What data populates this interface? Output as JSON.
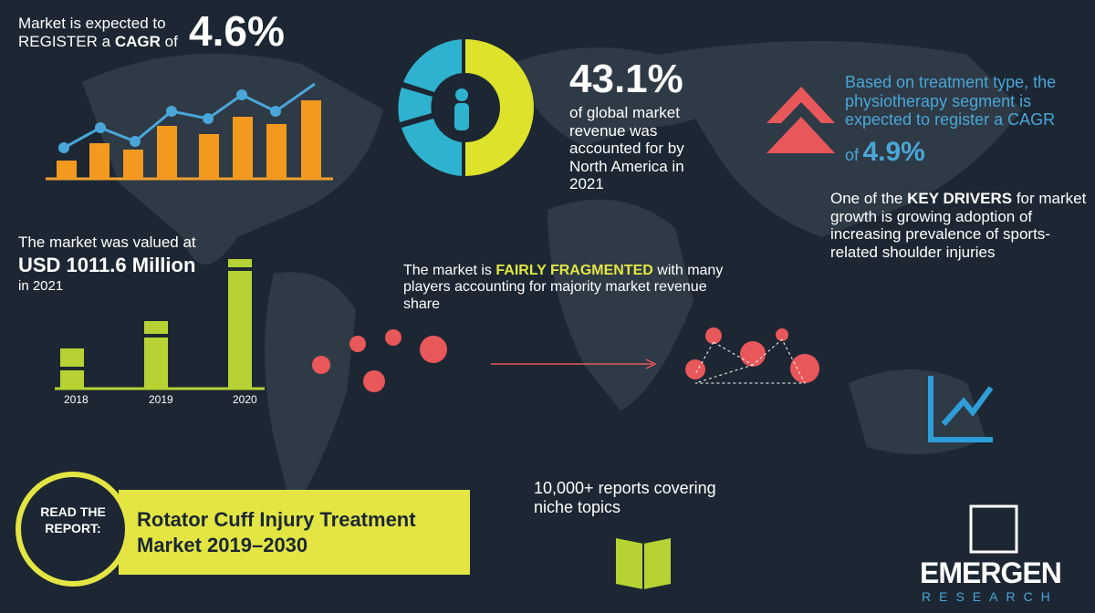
{
  "cagr": {
    "line1": "Market is expected to",
    "prefix": "REGISTER a",
    "bold": "CAGR",
    "suffix": "of",
    "value": "4.6%"
  },
  "north_america": {
    "value": "43.1%",
    "text": "of global market revenue was accounted for by North America in 2021"
  },
  "segment": {
    "text": "Based on treatment type, the physiotherapy segment is expected to register a CAGR",
    "prefix": "of",
    "value": "4.9%"
  },
  "drivers": {
    "prefix": "One of the",
    "bold": "KEY DRIVERS",
    "text": "for market growth is growing adoption of increasing prevalence of sports-related shoulder injuries"
  },
  "valuation": {
    "line1": "The market was valued at",
    "value": "USD 1011.6 Million",
    "line3": "in 2021",
    "years": [
      "2018",
      "2019",
      "2020"
    ]
  },
  "fragmentation": {
    "prefix": "The market is",
    "bold": "FAIRLY FRAGMENTED",
    "text": "with many players accounting for majority market revenue share"
  },
  "reports": {
    "text": "10,000+ reports covering niche topics"
  },
  "report_button": {
    "label": "READ THE REPORT:",
    "title": "Rotator Cuff Injury Treatment Market 2019–2030"
  },
  "logo": {
    "name": "EMERGEN",
    "sub": "RESEARCH"
  }
}
